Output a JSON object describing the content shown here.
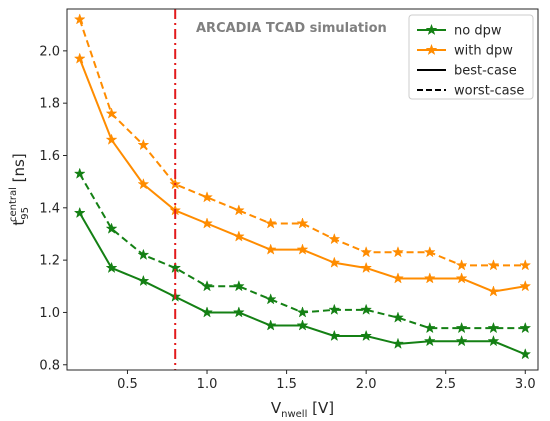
{
  "chart_data": {
    "type": "line",
    "annotation": "ARCADIA TCAD simulation",
    "xlabel": {
      "main": "V",
      "sub": "nwell",
      "unit": " [V]"
    },
    "ylabel": {
      "main": "t",
      "sub": "95",
      "sup": "central",
      "unit": " [ns]"
    },
    "xlim": [
      0.12,
      3.08
    ],
    "ylim": [
      0.78,
      2.16
    ],
    "xticks": [
      0.5,
      1.0,
      1.5,
      2.0,
      2.5,
      3.0
    ],
    "xtick_labels": [
      "0.5",
      "1.0",
      "1.5",
      "2.0",
      "2.5",
      "3.0"
    ],
    "yticks": [
      0.8,
      1.0,
      1.2,
      1.4,
      1.6,
      1.8,
      2.0
    ],
    "ytick_labels": [
      "0.8",
      "1.0",
      "1.2",
      "1.4",
      "1.6",
      "1.8",
      "2.0"
    ],
    "grid": false,
    "vline": {
      "x": 0.8,
      "color": "#e31a1c",
      "style": "dash-dot"
    },
    "x": [
      0.2,
      0.4,
      0.6,
      0.8,
      1.0,
      1.2,
      1.4,
      1.6,
      1.8,
      2.0,
      2.2,
      2.4,
      2.6,
      2.8,
      3.0
    ],
    "series": [
      {
        "group": "no dpw",
        "case": "best-case",
        "color": "#148014",
        "dashed": false,
        "values": [
          1.38,
          1.17,
          1.12,
          1.06,
          1.0,
          1.0,
          0.95,
          0.95,
          0.91,
          0.91,
          0.88,
          0.89,
          0.89,
          0.89,
          0.84
        ]
      },
      {
        "group": "no dpw",
        "case": "worst-case",
        "color": "#148014",
        "dashed": true,
        "values": [
          1.53,
          1.32,
          1.22,
          1.17,
          1.1,
          1.1,
          1.05,
          1.0,
          1.01,
          1.01,
          0.98,
          0.94,
          0.94,
          0.94,
          0.94
        ]
      },
      {
        "group": "with dpw",
        "case": "best-case",
        "color": "#ff8c00",
        "dashed": false,
        "values": [
          1.97,
          1.66,
          1.49,
          1.39,
          1.34,
          1.29,
          1.24,
          1.24,
          1.19,
          1.17,
          1.13,
          1.13,
          1.13,
          1.08,
          1.1
        ]
      },
      {
        "group": "with dpw",
        "case": "worst-case",
        "color": "#ff8c00",
        "dashed": true,
        "values": [
          2.12,
          1.76,
          1.64,
          1.49,
          1.44,
          1.39,
          1.34,
          1.34,
          1.28,
          1.23,
          1.23,
          1.23,
          1.18,
          1.18,
          1.18
        ]
      }
    ],
    "legend": {
      "placement": "top-right",
      "entries": [
        {
          "label": "no dpw",
          "color": "#148014",
          "marker": "star",
          "line": "solid"
        },
        {
          "label": "with dpw",
          "color": "#ff8c00",
          "marker": "star",
          "line": "solid"
        },
        {
          "label": "best-case",
          "color": "#000000",
          "marker": "none",
          "line": "solid"
        },
        {
          "label": "worst-case",
          "color": "#000000",
          "marker": "none",
          "line": "dashed"
        }
      ]
    }
  }
}
